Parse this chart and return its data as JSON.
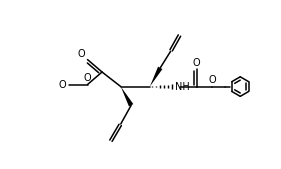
{
  "bg_color": "#ffffff",
  "line_color": "#000000",
  "lw": 1.1,
  "figsize": [
    2.81,
    1.69
  ],
  "dpi": 100,
  "xlim": [
    -1.0,
    10.5
  ],
  "ylim": [
    -0.5,
    7.5
  ],
  "fs": 7.0
}
